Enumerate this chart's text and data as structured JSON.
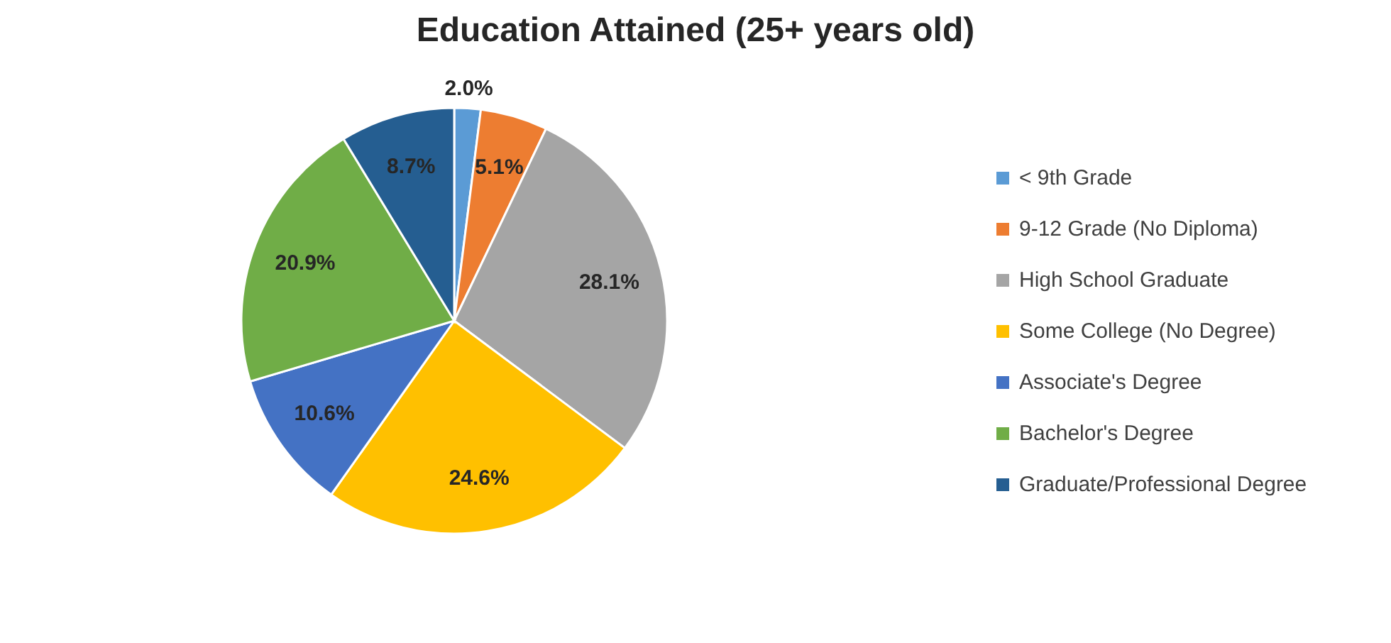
{
  "chart_data": {
    "type": "pie",
    "title": "Education Attained (25+ years old)",
    "categories": [
      "< 9th Grade",
      "9-12 Grade (No Diploma)",
      "High School Graduate",
      "Some College (No Degree)",
      "Associate's Degree",
      "Bachelor's Degree",
      "Graduate/Professional Degree"
    ],
    "values": [
      2.0,
      5.1,
      28.1,
      24.6,
      10.6,
      20.9,
      8.7
    ],
    "value_labels": [
      "2.0%",
      "5.1%",
      "28.1%",
      "24.6%",
      "10.6%",
      "20.9%",
      "8.7%"
    ],
    "colors": [
      "#5b9bd5",
      "#ed7d31",
      "#a5a5a5",
      "#ffc000",
      "#4472c4",
      "#70ad47",
      "#255e91"
    ],
    "legend": "right"
  }
}
